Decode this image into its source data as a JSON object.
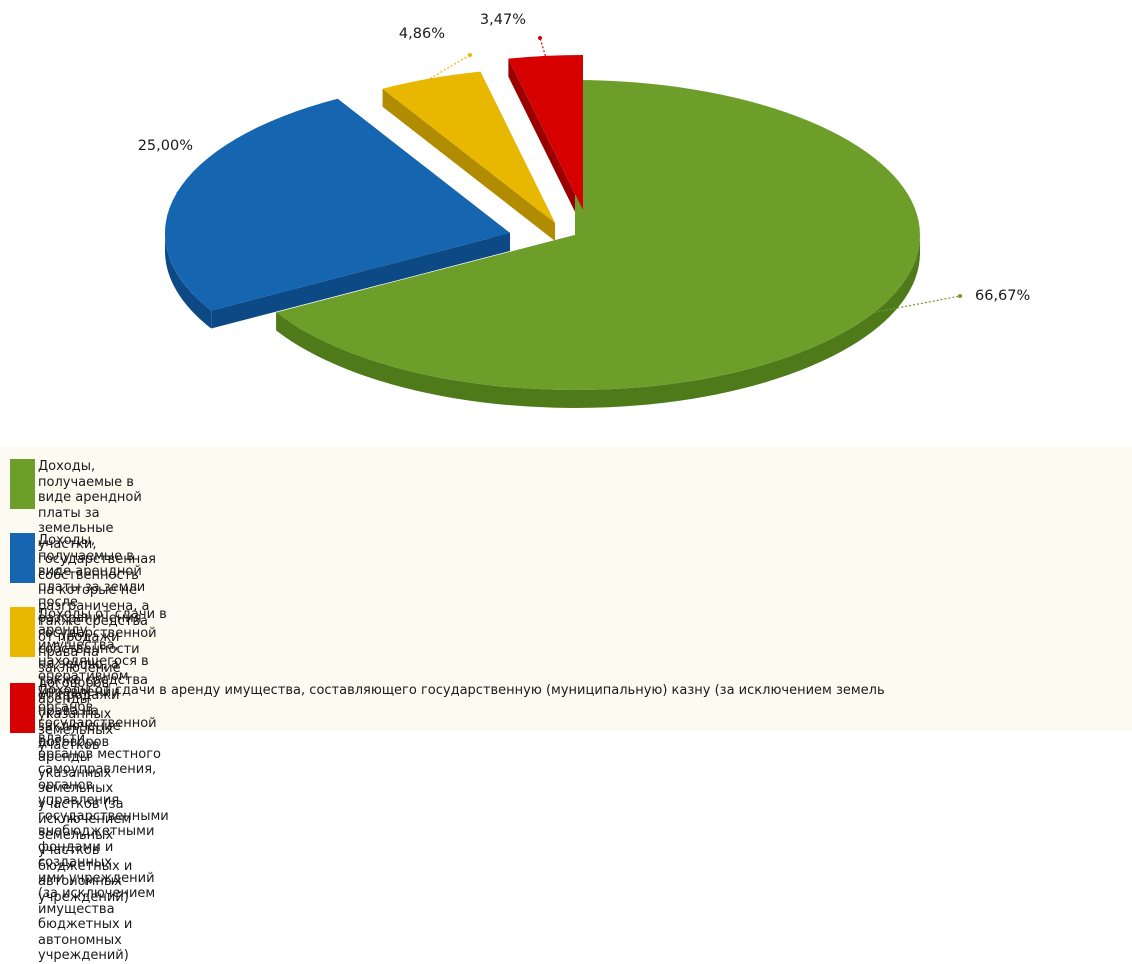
{
  "chart_data": {
    "type": "pie",
    "slices": [
      {
        "label": "Доходы, получаемые в виде арендной платы за земельные участки, государственная\nсобственность на которые не разграничена, а также средства от продажи права на заключение\nдоговоров аренды указанных земельных участков",
        "value": 66.67,
        "data_label": "66,67%",
        "color": "#6e9e2a",
        "side_color": "#4f7a1a"
      },
      {
        "label": "Доходы, получаемые в виде арендной платы за земли после разграничения государственной\nсобственности на землю, а также средства от продажи права на заключение договоров аренды\nуказанных земельных участков (за исключением земельных участков бюджетных и автономных учреждений)",
        "value": 25.0,
        "data_label": "25,00%",
        "color": "#1565b0",
        "side_color": "#0d4a85"
      },
      {
        "label": "Доходы от сдачи в аренду имущества, находящегося в оперативном управлении органов государственной власти,\nорганов местного самоуправления, органов управления государственными внебюджетными фондами и созданных\nими учреждений (за исключением имущества бюджетных и автономных учреждений)",
        "value": 4.86,
        "data_label": "4,86%",
        "color": "#e8b800",
        "side_color": "#b28c00"
      },
      {
        "label": "Доходы от сдачи в аренду имущества, составляющего государственную (муниципальную) казну (за исключением земель",
        "value": 3.47,
        "data_label": "3,47%",
        "color": "#d60000",
        "side_color": "#9a0000"
      }
    ],
    "legend_position": "bottom",
    "style": "3d-exploded"
  }
}
